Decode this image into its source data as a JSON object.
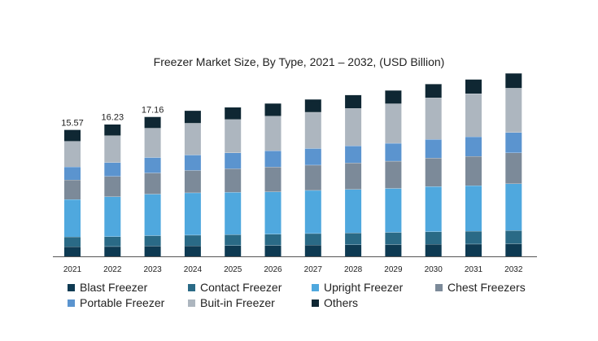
{
  "chart_data": {
    "type": "bar",
    "stacked": true,
    "title": "Freezer Market Size, By Type, 2021 – 2032, (USD Billion)",
    "xlabel": "",
    "ylabel": "",
    "categories": [
      "2021",
      "2022",
      "2023",
      "2024",
      "2025",
      "2026",
      "2027",
      "2028",
      "2029",
      "2030",
      "2031",
      "2032"
    ],
    "totals_labels": [
      "15.57",
      "16.23",
      "17.16",
      "",
      "",
      "",
      "",
      "",
      "",
      "",
      "",
      ""
    ],
    "ylim": [
      0,
      22
    ],
    "grid": false,
    "legend_position": "bottom",
    "series": [
      {
        "name": "Blast Freezer",
        "color": "#0e3a52",
        "values": [
          1.2,
          1.22,
          1.28,
          1.3,
          1.33,
          1.36,
          1.4,
          1.43,
          1.46,
          1.5,
          1.52,
          1.56
        ]
      },
      {
        "name": "Contact Freezer",
        "color": "#2a6a86",
        "values": [
          1.2,
          1.22,
          1.28,
          1.32,
          1.35,
          1.38,
          1.42,
          1.46,
          1.5,
          1.54,
          1.58,
          1.62
        ]
      },
      {
        "name": "Upright Freezer",
        "color": "#4fa8de",
        "values": [
          4.6,
          4.9,
          5.1,
          5.2,
          5.2,
          5.2,
          5.3,
          5.35,
          5.4,
          5.55,
          5.6,
          5.75
        ]
      },
      {
        "name": "Chest Freezers",
        "color": "#7c8a99",
        "values": [
          2.4,
          2.5,
          2.6,
          2.75,
          2.9,
          3.05,
          3.1,
          3.25,
          3.35,
          3.5,
          3.6,
          3.8
        ]
      },
      {
        "name": "Portable Freezer",
        "color": "#5b94cf",
        "values": [
          1.6,
          1.7,
          1.9,
          1.9,
          1.95,
          2.0,
          2.05,
          2.1,
          2.2,
          2.3,
          2.4,
          2.5
        ]
      },
      {
        "name": "Buit-in Freezer",
        "color": "#adb6bf",
        "values": [
          3.15,
          3.3,
          3.6,
          3.9,
          4.1,
          4.25,
          4.45,
          4.6,
          4.85,
          5.1,
          5.3,
          5.45
        ]
      },
      {
        "name": "Others",
        "color": "#0f2733",
        "values": [
          1.42,
          1.39,
          1.4,
          1.55,
          1.5,
          1.56,
          1.58,
          1.65,
          1.64,
          1.7,
          1.75,
          1.82
        ]
      }
    ]
  }
}
